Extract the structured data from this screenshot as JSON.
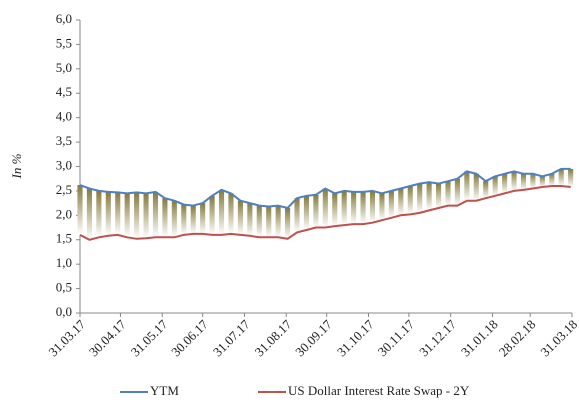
{
  "chart_data": {
    "type": "line",
    "y_label": "In %",
    "x": [
      "31.03.17",
      "07.04.17",
      "14.04.17",
      "21.04.17",
      "28.04.17",
      "05.05.17",
      "12.05.17",
      "19.05.17",
      "26.05.17",
      "02.06.17",
      "09.06.17",
      "16.06.17",
      "23.06.17",
      "30.06.17",
      "07.07.17",
      "14.07.17",
      "21.07.17",
      "28.07.17",
      "04.08.17",
      "11.08.17",
      "18.08.17",
      "25.08.17",
      "01.09.17",
      "08.09.17",
      "15.09.17",
      "22.09.17",
      "29.09.17",
      "06.10.17",
      "13.10.17",
      "20.10.17",
      "27.10.17",
      "03.11.17",
      "10.11.17",
      "17.11.17",
      "24.11.17",
      "01.12.17",
      "08.12.17",
      "15.12.17",
      "22.12.17",
      "29.12.17",
      "05.01.18",
      "12.01.18",
      "19.01.18",
      "26.01.18",
      "02.02.18",
      "09.02.18",
      "16.02.18",
      "23.02.18",
      "02.03.18",
      "09.03.18",
      "16.03.18",
      "23.03.18",
      "30.03.18"
    ],
    "series": [
      {
        "name": "YTM",
        "color": "#4f81bd",
        "values": [
          2.62,
          2.55,
          2.5,
          2.48,
          2.47,
          2.45,
          2.47,
          2.45,
          2.48,
          2.35,
          2.3,
          2.22,
          2.2,
          2.25,
          2.4,
          2.52,
          2.45,
          2.3,
          2.25,
          2.2,
          2.18,
          2.2,
          2.15,
          2.35,
          2.4,
          2.42,
          2.55,
          2.45,
          2.5,
          2.48,
          2.48,
          2.5,
          2.45,
          2.5,
          2.55,
          2.6,
          2.65,
          2.68,
          2.65,
          2.7,
          2.75,
          2.9,
          2.85,
          2.7,
          2.8,
          2.85,
          2.9,
          2.85,
          2.85,
          2.8,
          2.85,
          2.95,
          2.95
        ]
      },
      {
        "name": "US Dollar Interest Rate Swap - 2Y",
        "color": "#c0504d",
        "values": [
          1.6,
          1.5,
          1.55,
          1.58,
          1.6,
          1.55,
          1.52,
          1.53,
          1.55,
          1.55,
          1.55,
          1.6,
          1.62,
          1.62,
          1.6,
          1.6,
          1.62,
          1.6,
          1.58,
          1.55,
          1.55,
          1.55,
          1.52,
          1.65,
          1.7,
          1.75,
          1.75,
          1.78,
          1.8,
          1.82,
          1.82,
          1.85,
          1.9,
          1.95,
          2.0,
          2.02,
          2.05,
          2.1,
          2.15,
          2.2,
          2.2,
          2.3,
          2.3,
          2.35,
          2.4,
          2.45,
          2.5,
          2.52,
          2.55,
          2.58,
          2.6,
          2.6,
          2.58
        ]
      }
    ],
    "band_color": "#857a3c",
    "xlim": [
      "31.03.17",
      "31.03.18"
    ],
    "xticks": [
      "31.03.17",
      "30.04.17",
      "31.05.17",
      "30.06.17",
      "31.07.17",
      "31.08.17",
      "30.09.17",
      "31.10.17",
      "30.11.17",
      "31.12.17",
      "31.01.18",
      "28.02.18",
      "31.03.18"
    ],
    "ylim": [
      0,
      6
    ],
    "yticks": [
      {
        "value": 0,
        "label": "0,0"
      },
      {
        "value": 0.5,
        "label": "0,5"
      },
      {
        "value": 1,
        "label": "1,0"
      },
      {
        "value": 1.5,
        "label": "1,5"
      },
      {
        "value": 2,
        "label": "2,0"
      },
      {
        "value": 2.5,
        "label": "2,5"
      },
      {
        "value": 3,
        "label": "3,0"
      },
      {
        "value": 3.5,
        "label": "3,5"
      },
      {
        "value": 4,
        "label": "4,0"
      },
      {
        "value": 4.5,
        "label": "4,5"
      },
      {
        "value": 5,
        "label": "5,0"
      },
      {
        "value": 5.5,
        "label": "5,5"
      },
      {
        "value": 6,
        "label": "6,0"
      }
    ],
    "legend": "bottom"
  }
}
